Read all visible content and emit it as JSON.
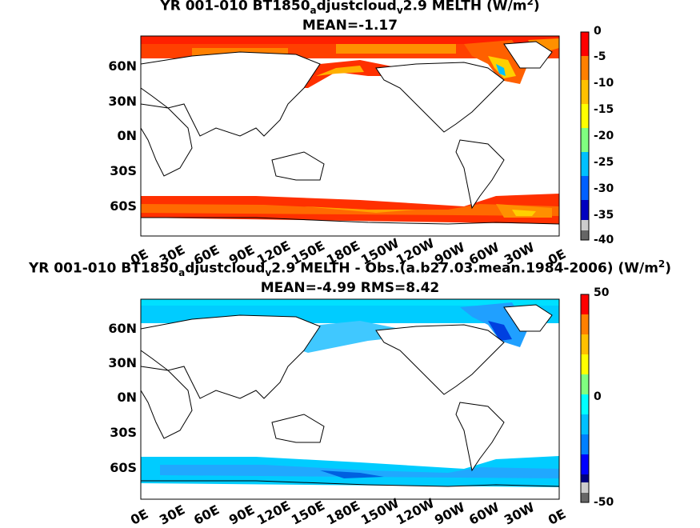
{
  "panels": [
    {
      "title_prefix": "YR 001-010 BT1850",
      "title_sub1": "a",
      "title_mid": "djustcloud",
      "title_sub2": "v",
      "title_suffix": "2.9 MELTH (W/m",
      "title_sup": "2",
      "title_end": ")",
      "stats": "MEAN=-1.17",
      "colorbar": {
        "min": -40,
        "max": 0,
        "tick_labels": [
          "0",
          "-5",
          "-10",
          "-15",
          "-20",
          "-25",
          "-30",
          "-35",
          "-40"
        ]
      }
    },
    {
      "title_prefix": "YR 001-010 BT1850",
      "title_sub1": "a",
      "title_mid": "djustcloud",
      "title_sub2": "v",
      "title_suffix": "2.9 MELTH - Obs.(a.b27.03.mean.1984-2006) (W/m",
      "title_sup": "2",
      "title_end": ")",
      "stats": "MEAN=-4.99 RMS=8.42",
      "colorbar": {
        "min": -50,
        "max": 50,
        "tick_labels": [
          "50",
          "0",
          "-50"
        ]
      }
    }
  ],
  "lat_labels": [
    "60N",
    "30N",
    "0N",
    "30S",
    "60S"
  ],
  "lon_labels": [
    "0E",
    "30E",
    "60E",
    "90E",
    "120E",
    "150E",
    "180E",
    "150W",
    "120W",
    "90W",
    "60W",
    "30W",
    "0E"
  ],
  "colors": {
    "rainbow": [
      "#800000",
      "#ff0000",
      "#ff8000",
      "#ffc000",
      "#ffff00",
      "#80ff80",
      "#00ffff",
      "#0080ff",
      "#0000ff",
      "#000080"
    ]
  }
}
